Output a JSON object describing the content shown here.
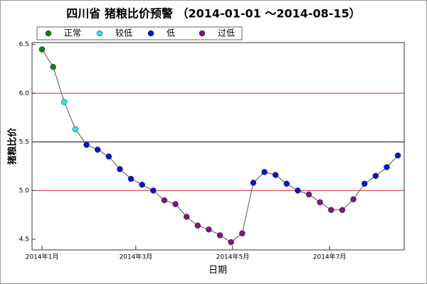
{
  "chart_data": {
    "type": "line",
    "title": "四川省 猪粮比价预警 （2014-01-01 ～2014-08-15）",
    "xlabel": "日期",
    "ylabel": "猪粮比价",
    "legend": [
      {
        "name": "正常",
        "color": "#1a7a1a"
      },
      {
        "name": "较低",
        "color": "#33e0e0"
      },
      {
        "name": "低",
        "color": "#1010d8"
      },
      {
        "name": "过低",
        "color": "#7a1a7a"
      }
    ],
    "x": [
      0,
      7,
      14,
      21,
      28,
      35,
      42,
      49,
      56,
      63,
      70,
      77,
      84,
      91,
      98,
      105,
      112,
      119,
      126,
      133,
      140,
      147,
      154,
      161,
      168,
      175,
      182,
      189,
      196,
      203,
      210,
      217,
      224
    ],
    "values": [
      6.45,
      6.27,
      5.91,
      5.63,
      5.47,
      5.42,
      5.35,
      5.22,
      5.12,
      5.06,
      5.0,
      4.9,
      4.86,
      4.73,
      4.64,
      4.6,
      4.54,
      4.47,
      4.56,
      5.08,
      5.19,
      5.16,
      5.07,
      5.0,
      4.96,
      4.88,
      4.8,
      4.8,
      4.91,
      5.07,
      5.15,
      5.24,
      5.36
    ],
    "point_class": [
      0,
      0,
      1,
      1,
      2,
      2,
      2,
      2,
      2,
      2,
      2,
      3,
      3,
      3,
      3,
      3,
      3,
      3,
      3,
      2,
      2,
      2,
      2,
      2,
      3,
      3,
      3,
      3,
      3,
      2,
      2,
      2,
      2
    ],
    "line_color": "#555555",
    "xlim": [
      -6.3,
      228
    ],
    "ylim": [
      4.39,
      6.52
    ],
    "xticks": [
      {
        "value": 0,
        "label": "2014年1月"
      },
      {
        "value": 59,
        "label": "2014年3月"
      },
      {
        "value": 120,
        "label": "2014年5月"
      },
      {
        "value": 181,
        "label": "2014年7月"
      }
    ],
    "yticks": [
      4.5,
      {
        "value": 5,
        "label": "5.0"
      },
      5.5,
      {
        "value": 6,
        "label": "6.0"
      },
      6.5
    ],
    "reference_lines": [
      {
        "value": 5,
        "color": "#e03030"
      },
      {
        "value": 5.5,
        "color": "#000000"
      },
      {
        "value": 6,
        "color": "#e03030"
      }
    ]
  }
}
